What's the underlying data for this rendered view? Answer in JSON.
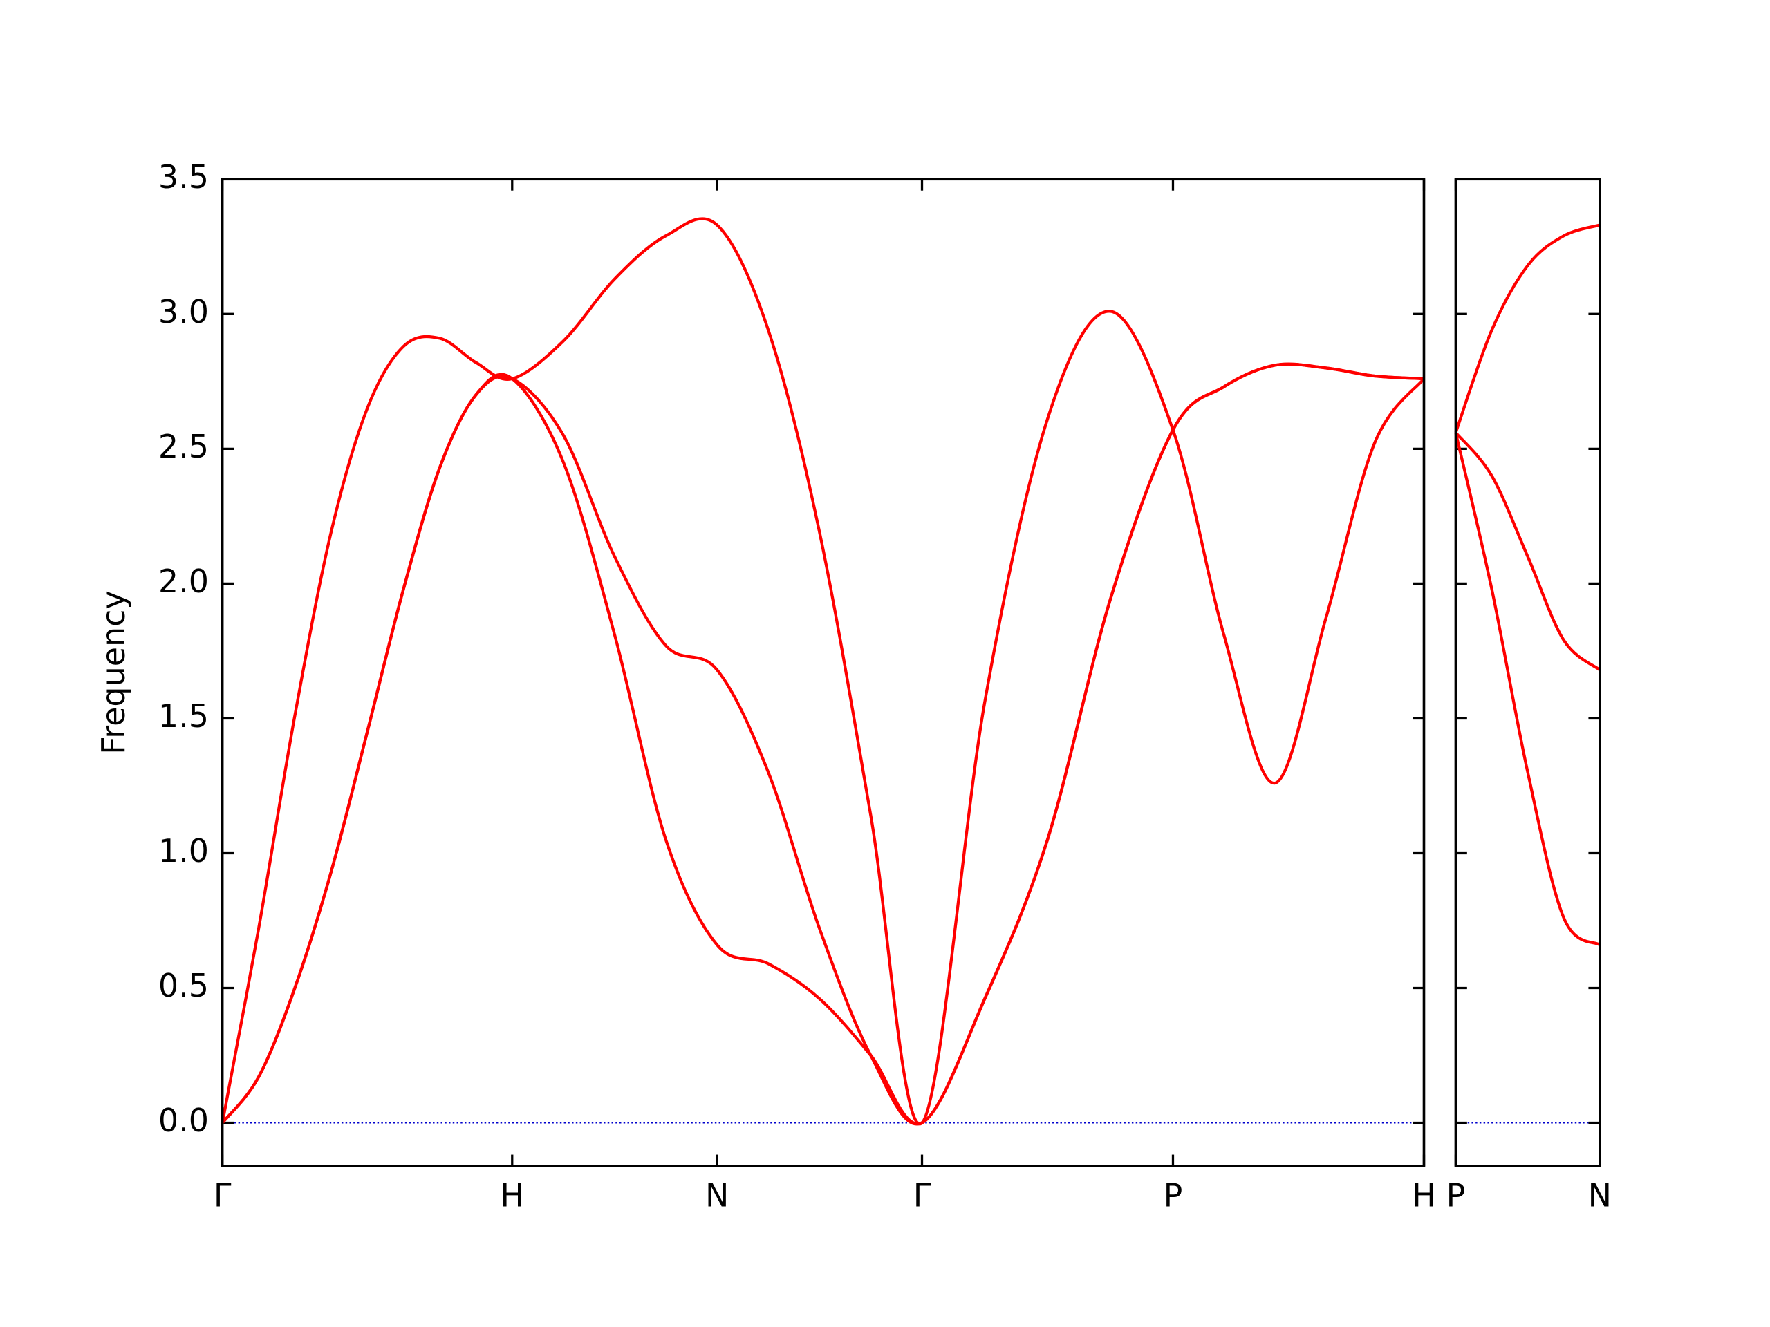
{
  "chart_data": [
    {
      "type": "line",
      "ylabel": "Frequency",
      "xlim": [
        0,
        4.1463
      ],
      "xticks": [
        {
          "value": 0,
          "label": "Γ"
        },
        {
          "value": 1,
          "label": "H"
        },
        {
          "value": 1.7071,
          "label": "N"
        },
        {
          "value": 2.4142,
          "label": "Γ"
        },
        {
          "value": 3.2802,
          "label": "P"
        },
        {
          "value": 4.1463,
          "label": "H"
        }
      ],
      "ylim": [
        -0.16,
        3.5
      ],
      "yticks": [
        {
          "value": 0,
          "label": "0.0"
        },
        {
          "value": 0.5,
          "label": "0.5"
        },
        {
          "value": 1,
          "label": "1.0"
        },
        {
          "value": 1.5,
          "label": "1.5"
        },
        {
          "value": 2,
          "label": "2.0"
        },
        {
          "value": 2.5,
          "label": "2.5"
        },
        {
          "value": 3,
          "label": "3.0"
        },
        {
          "value": 3.5,
          "label": "3.5"
        }
      ],
      "hline": 0,
      "hline_color": "#0000cc",
      "x": [
        0,
        0.125,
        0.25,
        0.375,
        0.5,
        0.625,
        0.75,
        0.875,
        1,
        1.1768,
        1.3536,
        1.5303,
        1.7071,
        1.8839,
        2.0607,
        2.2374,
        2.4142,
        2.6307,
        2.8472,
        3.0637,
        3.2802,
        3.456,
        3.6318,
        3.8075,
        3.9755,
        4.1463
      ],
      "series": [
        {
          "color": "#ff0000",
          "values": [
            0,
            0.17,
            0.5,
            0.93,
            1.45,
            1.98,
            2.43,
            2.7,
            2.76,
            2.45,
            1.81,
            1.05,
            0.66,
            0.59,
            0.46,
            0.25,
            0,
            0.46,
            1.05,
            1.94,
            2.57,
            2.73,
            2.81,
            2.8,
            2.77,
            2.76
          ]
        },
        {
          "color": "#ff0000",
          "values": [
            0,
            0.17,
            0.5,
            0.93,
            1.45,
            1.98,
            2.43,
            2.7,
            2.76,
            2.55,
            2.1,
            1.77,
            1.68,
            1.3,
            0.72,
            0.25,
            0,
            0.46,
            1.05,
            1.94,
            2.57,
            2.73,
            2.81,
            2.8,
            2.77,
            2.76
          ]
        },
        {
          "color": "#ff0000",
          "values": [
            0,
            0.72,
            1.51,
            2.19,
            2.65,
            2.88,
            2.91,
            2.82,
            2.76,
            2.9,
            3.13,
            3.29,
            3.33,
            2.94,
            2.19,
            1.14,
            0,
            1.56,
            2.61,
            3.01,
            2.57,
            1.81,
            1.26,
            1.87,
            2.52,
            2.76
          ]
        }
      ]
    },
    {
      "type": "line",
      "xlim": [
        0,
        0.5
      ],
      "xticks": [
        {
          "value": 0,
          "label": "P"
        },
        {
          "value": 0.5,
          "label": "N"
        }
      ],
      "ylim": [
        -0.16,
        3.5
      ],
      "yticks": [
        0,
        0.5,
        1,
        1.5,
        2,
        2.5,
        3,
        3.5
      ],
      "hline": 0,
      "hline_color": "#0000cc",
      "x": [
        0,
        0.125,
        0.25,
        0.375,
        0.5
      ],
      "series": [
        {
          "color": "#ff0000",
          "values": [
            2.56,
            1.98,
            1.3,
            0.76,
            0.66
          ]
        },
        {
          "color": "#ff0000",
          "values": [
            2.56,
            2.4,
            2.1,
            1.79,
            1.68
          ]
        },
        {
          "color": "#ff0000",
          "values": [
            2.56,
            2.94,
            3.18,
            3.29,
            3.33
          ]
        }
      ]
    }
  ]
}
